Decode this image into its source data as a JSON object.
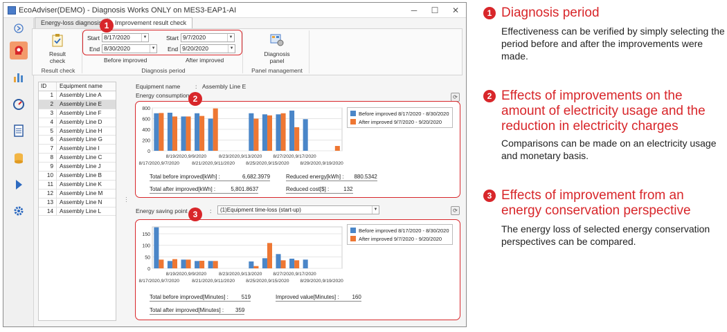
{
  "window": {
    "title": "EcoAdviser(DEMO) - Diagnosis Works ONLY on MES3-EAP1-AI",
    "min": "─",
    "max": "☐",
    "close": "✕"
  },
  "nav": {
    "icons": [
      "back-arrow-icon",
      "diagnosis-head-icon",
      "bar-chart-icon",
      "gauge-icon",
      "document-icon",
      "database-icon",
      "play-icon",
      "gear-icon"
    ]
  },
  "tabs": [
    "Energy-loss diagnosis",
    "Improvement result check"
  ],
  "ribbon": {
    "result_check_label": "Result\ncheck",
    "result_check_group": "Result check",
    "before": {
      "start_label": "Start",
      "start_value": "8/17/2020",
      "end_label": "End",
      "end_value": "8/30/2020",
      "caption": "Before improved"
    },
    "after": {
      "start_label": "Start",
      "start_value": "9/7/2020",
      "end_label": "End",
      "end_value": "9/20/2020",
      "caption": "After improved"
    },
    "period_group": "Diagnosis period",
    "panel_button": "Diagnosis\npanel",
    "panel_group": "Panel management"
  },
  "list": {
    "headers": [
      "ID",
      "Equipment name"
    ],
    "rows": [
      [
        "1",
        "Assembly Line A"
      ],
      [
        "2",
        "Assembly Line E"
      ],
      [
        "3",
        "Assembly Line F"
      ],
      [
        "4",
        "Assembly Line D"
      ],
      [
        "5",
        "Assembly Line H"
      ],
      [
        "6",
        "Assembly Line G"
      ],
      [
        "7",
        "Assembly Line I"
      ],
      [
        "8",
        "Assembly Line C"
      ],
      [
        "9",
        "Assembly Line J"
      ],
      [
        "10",
        "Assembly Line B"
      ],
      [
        "11",
        "Assembly Line K"
      ],
      [
        "12",
        "Assembly Line M"
      ],
      [
        "13",
        "Assembly Line N"
      ],
      [
        "14",
        "Assembly Line L"
      ]
    ],
    "selected": 1
  },
  "detail": {
    "equip_label": "Equipment name",
    "equip_sep": ":",
    "equip_value": "Assembly Line E",
    "consumption_label": "Energy consumption",
    "saving_label": "Energy saving point",
    "saving_sep": ":",
    "saving_select": "(1)Equipment time-loss (start-up)"
  },
  "colors": {
    "before": "#4a86c8",
    "after": "#ee7733",
    "accent": "#d8262a"
  },
  "chart_data": [
    {
      "type": "bar",
      "title": "",
      "xlabel": "",
      "ylabel": "",
      "ylim": [
        0,
        800
      ],
      "yticks": [
        0,
        200,
        400,
        600,
        800
      ],
      "x_tick_labels_top": [
        "8/19/2020,9/9/2020",
        "8/23/2020,9/13/2020",
        "8/27/2020,9/17/2020"
      ],
      "x_tick_labels_bottom": [
        "8/17/2020,9/7/2020",
        "8/21/2020,9/11/2020",
        "8/25/2020,9/15/2020",
        "8/29/2020,9/19/2020"
      ],
      "series": [
        {
          "name": "Before improved 8/17/2020 - 8/30/2020",
          "values": [
            700,
            710,
            640,
            700,
            600,
            null,
            null,
            700,
            680,
            680,
            750,
            590,
            null,
            null
          ]
        },
        {
          "name": "After improved 9/7/2020 - 9/20/2020",
          "values": [
            705,
            640,
            640,
            650,
            790,
            null,
            null,
            600,
            660,
            700,
            440,
            null,
            null,
            90
          ]
        }
      ],
      "totals": {
        "before_label": "Total before improved[kWh] :",
        "before_value": "6,682.3979",
        "after_label": "Total after improved[kWh] :",
        "after_value": "5,801.8637",
        "reduced_energy_label": "Reduced energy[kWh] :",
        "reduced_energy_value": "880.5342",
        "reduced_cost_label": "Reduced cost[$] :",
        "reduced_cost_value": "132"
      }
    },
    {
      "type": "bar",
      "title": "",
      "xlabel": "",
      "ylabel": "",
      "ylim": [
        0,
        180
      ],
      "yticks": [
        0,
        50,
        100,
        150
      ],
      "x_tick_labels_top": [
        "8/19/2020,9/9/2020",
        "8/23/2020,9/13/2020",
        "8/27/2020,9/17/2020"
      ],
      "x_tick_labels_bottom": [
        "8/17/2020,9/7/2020",
        "8/21/2020,9/11/2020",
        "8/25/2020,9/15/2020",
        "8/29/2020,9/19/2020"
      ],
      "series": [
        {
          "name": "Before improved 8/17/2020 - 8/30/2020",
          "values": [
            178,
            32,
            38,
            32,
            32,
            null,
            null,
            30,
            44,
            62,
            42,
            38,
            null,
            null
          ]
        },
        {
          "name": "After improved 9/7/2020 - 9/20/2020",
          "values": [
            38,
            40,
            38,
            33,
            32,
            null,
            null,
            10,
            110,
            35,
            35,
            null,
            null,
            null
          ]
        }
      ],
      "totals": {
        "before_label": "Total before improved[Minutes] :",
        "before_value": "519",
        "after_label": "Total after improved[Minutes] :",
        "after_value": "359",
        "improved_label": "Improved value[Minutes] :",
        "improved_value": "160"
      }
    }
  ],
  "callouts": [
    {
      "num": "1",
      "heading": "Diagnosis period",
      "desc": "Effectiveness can be verified by simply selecting the period before and after the improvements were made."
    },
    {
      "num": "2",
      "heading": "Effects of improvements on the amount of electricity usage and the reduction in electricity charges",
      "desc": "Comparisons can be made on an electricity usage and monetary basis."
    },
    {
      "num": "3",
      "heading": "Effects of improvement from an energy conservation perspective",
      "desc": "The energy loss of selected energy conservation perspectives can be compared."
    }
  ],
  "badges": [
    "1",
    "2",
    "3"
  ]
}
